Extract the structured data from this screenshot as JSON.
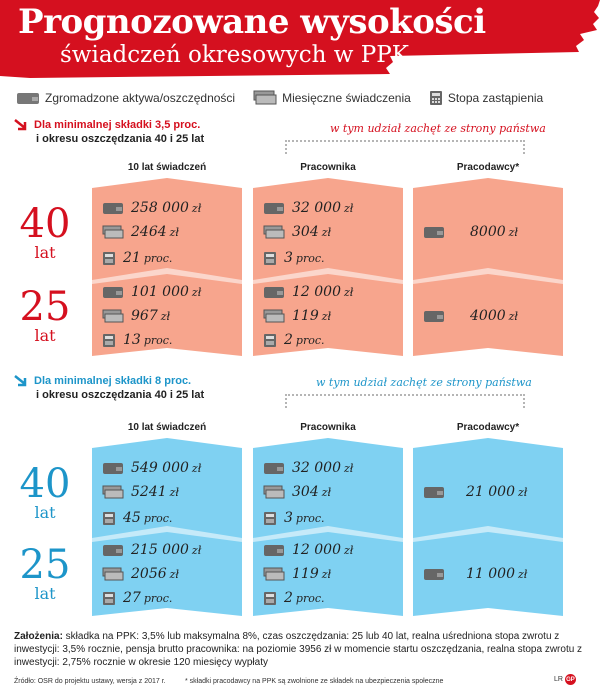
{
  "title": "Prognozowane wysokości",
  "subtitle": "świadczeń okresowych w PPK",
  "colors": {
    "red": "#d5101f",
    "salmon": "#f7a58d",
    "blue": "#7fd1f2",
    "blue_text": "#1d95c9"
  },
  "legend": [
    {
      "icon": "wallet-icon",
      "label": "Zgromadzone aktywa/oszczędności"
    },
    {
      "icon": "banknotes-icon",
      "label": "Miesięczne świadczenia"
    },
    {
      "icon": "calculator-icon",
      "label": "Stopa zastąpienia"
    }
  ],
  "columns": {
    "benefits": "10 lat świadczeń",
    "employee": "Pracownika",
    "employer": "Pracodawcy*"
  },
  "included_note": "w tym udział zachęt ze strony państwa",
  "scenario_red": {
    "line1": "Dla minimalnej składki 3,5 proc.",
    "line2": "i okresu oszczędzania 40 i 25 lat",
    "y40": "40",
    "y25": "25",
    "lat": "lat",
    "benefits_40": [
      "258 000",
      "2464",
      "21"
    ],
    "benefits_25": [
      "101 000",
      "967",
      "13"
    ],
    "employee_40": [
      "32 000",
      "304",
      "3"
    ],
    "employee_25": [
      "12 000",
      "119",
      "2"
    ],
    "employer_40": "8000",
    "employer_25": "4000"
  },
  "scenario_blue": {
    "line1": "Dla minimalnej składki 8 proc.",
    "line2": "i okresu oszczędzania 40 i 25 lat",
    "y40": "40",
    "y25": "25",
    "lat": "lat",
    "benefits_40": [
      "549 000",
      "5241",
      "45"
    ],
    "benefits_25": [
      "215 000",
      "2056",
      "27"
    ],
    "employee_40": [
      "32 000",
      "304",
      "3"
    ],
    "employee_25": [
      "12 000",
      "119",
      "2"
    ],
    "employer_40": "21 000",
    "employer_25": "11 000"
  },
  "units": {
    "money": "zł",
    "percent": "proc."
  },
  "assumptions": {
    "label": "Założenia:",
    "text": " składka na PPK: 3,5% lub maksymalna 8%, czas oszczędzania: 25 lub 40 lat, realna uśredniona stopa zwrotu z inwestycji: 3,5% rocznie, pensja brutto pracownika: na poziomie 3956 zł w momencie startu oszczędzania, realna stopa zwrotu z inwestycji: 2,75% rocznie w okresie 120 miesięcy wypłaty"
  },
  "source": "Źródło: OSR do projektu ustawy, wersja z 2017 r.",
  "footnote": "* składki pracodawcy na PPK są zwolnione ze składek na ubezpieczenia społeczne",
  "credit": "LR",
  "logo_text": "GP",
  "chart_data": {
    "type": "table",
    "title": "Prognozowane wysokości świadczeń okresowych w PPK",
    "columns": [
      "10 lat świadczeń",
      "Pracownika",
      "Pracodawcy*"
    ],
    "metrics": [
      "Zgromadzone aktywa/oszczędności (zł)",
      "Miesięczne świadczenia (zł)",
      "Stopa zastąpienia (proc.)"
    ],
    "scenarios": [
      {
        "name": "Dla minimalnej składki 3,5 proc. i okresu oszczędzania 40 i 25 lat",
        "rows": [
          {
            "period": "40 lat",
            "benefits": [
              258000,
              2464,
              21
            ],
            "employee": [
              32000,
              304,
              3
            ],
            "employer": [
              8000
            ]
          },
          {
            "period": "25 lat",
            "benefits": [
              101000,
              967,
              13
            ],
            "employee": [
              12000,
              119,
              2
            ],
            "employer": [
              4000
            ]
          }
        ]
      },
      {
        "name": "Dla minimalnej składki 8 proc. i okresu oszczędzania 40 i 25 lat",
        "rows": [
          {
            "period": "40 lat",
            "benefits": [
              549000,
              5241,
              45
            ],
            "employee": [
              32000,
              304,
              3
            ],
            "employer": [
              21000
            ]
          },
          {
            "period": "25 lat",
            "benefits": [
              215000,
              2056,
              27
            ],
            "employee": [
              12000,
              119,
              2
            ],
            "employer": [
              11000
            ]
          }
        ]
      }
    ]
  }
}
